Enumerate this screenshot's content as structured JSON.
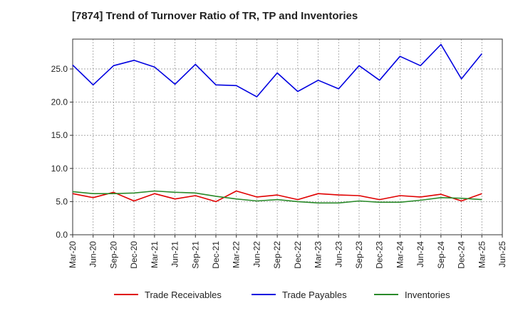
{
  "chart_data": {
    "type": "line",
    "title": "[7874]  Trend of Turnover Ratio of TR, TP and Inventories",
    "xlabel": "",
    "ylabel": "",
    "x": [
      "Mar-20",
      "Jun-20",
      "Sep-20",
      "Dec-20",
      "Mar-21",
      "Jun-21",
      "Sep-21",
      "Dec-21",
      "Mar-22",
      "Jun-22",
      "Sep-22",
      "Dec-22",
      "Mar-23",
      "Jun-23",
      "Sep-23",
      "Dec-23",
      "Mar-24",
      "Jun-24",
      "Sep-24",
      "Dec-24",
      "Mar-25"
    ],
    "x_tick_labels": [
      "Mar-20",
      "Jun-20",
      "Sep-20",
      "Dec-20",
      "Mar-21",
      "Jun-21",
      "Sep-21",
      "Dec-21",
      "Mar-22",
      "Jun-22",
      "Sep-22",
      "Dec-22",
      "Mar-23",
      "Jun-23",
      "Sep-23",
      "Dec-23",
      "Mar-24",
      "Jun-24",
      "Sep-24",
      "Dec-24",
      "Mar-25",
      "Jun-25"
    ],
    "y_tick_labels": [
      "0.0",
      "5.0",
      "10.0",
      "15.0",
      "20.0",
      "25.0"
    ],
    "y_ticks": [
      0,
      5,
      10,
      15,
      20,
      25
    ],
    "ylim": [
      0,
      29.5
    ],
    "grid": true,
    "legend_position": "bottom",
    "series": [
      {
        "name": "Trade Receivables",
        "color": "#e00000",
        "values": [
          6.2,
          5.6,
          6.4,
          5.1,
          6.2,
          5.4,
          5.9,
          5.0,
          6.6,
          5.7,
          6.0,
          5.3,
          6.2,
          6.0,
          5.9,
          5.3,
          5.9,
          5.7,
          6.1,
          5.1,
          6.2
        ]
      },
      {
        "name": "Trade Payables",
        "color": "#0000e0",
        "values": [
          25.6,
          22.6,
          25.5,
          26.3,
          25.3,
          22.7,
          25.7,
          22.6,
          22.5,
          20.8,
          24.4,
          21.6,
          23.3,
          22.0,
          25.5,
          23.3,
          26.9,
          25.5,
          28.7,
          23.5,
          27.3
        ]
      },
      {
        "name": "Inventories",
        "color": "#2a8a2a",
        "values": [
          6.5,
          6.2,
          6.2,
          6.3,
          6.6,
          6.4,
          6.3,
          5.8,
          5.4,
          5.1,
          5.3,
          5.0,
          4.8,
          4.8,
          5.1,
          4.9,
          4.9,
          5.2,
          5.6,
          5.5,
          5.3
        ]
      }
    ]
  }
}
